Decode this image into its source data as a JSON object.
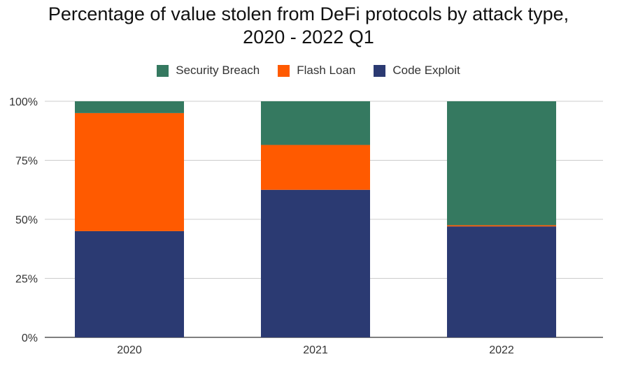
{
  "chart_data": {
    "type": "bar",
    "stacked": true,
    "title": "Percentage of value stolen from DeFi protocols by attack type, 2020 - 2022 Q1",
    "title_lines": [
      "Percentage of value stolen from DeFi protocols by attack type,",
      "2020 - 2022 Q1"
    ],
    "categories": [
      "2020",
      "2021",
      "2022"
    ],
    "series": [
      {
        "name": "Code Exploit",
        "color": "#2b3a72",
        "values": [
          45,
          62.5,
          47
        ]
      },
      {
        "name": "Flash Loan",
        "color": "#ff5a00",
        "values": [
          50,
          19,
          0.5
        ]
      },
      {
        "name": "Security Breach",
        "color": "#357960",
        "values": [
          5,
          18.5,
          52.5
        ]
      }
    ],
    "legend_order": [
      "Security Breach",
      "Flash Loan",
      "Code Exploit"
    ],
    "legend_position": "top",
    "ylim": [
      0,
      100
    ],
    "yticks": [
      "0%",
      "25%",
      "50%",
      "75%",
      "100%"
    ],
    "grid": true,
    "xlabel": "",
    "ylabel": ""
  }
}
